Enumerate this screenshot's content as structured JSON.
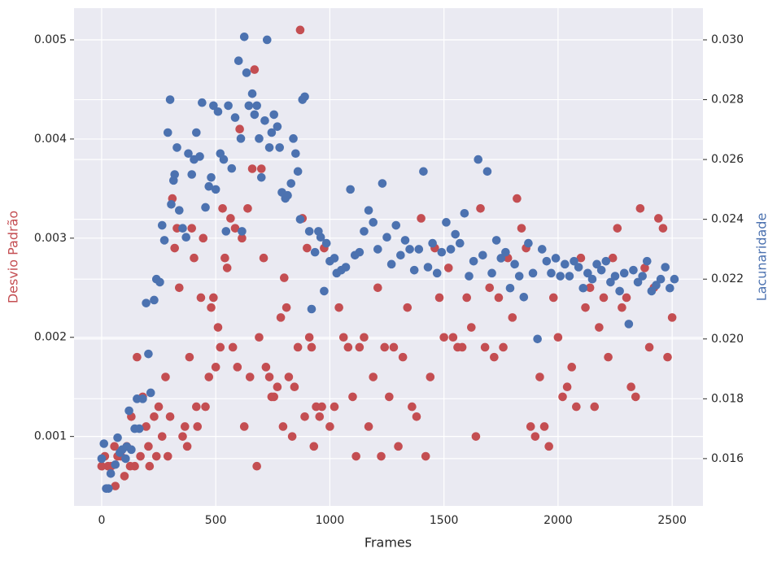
{
  "chart_data": {
    "type": "scatter",
    "xlabel": "Frames",
    "ylabel": "Desvio Padrão",
    "y2label": "Lacunaridade",
    "xlim": [
      -121,
      2635
    ],
    "xticks": [
      0,
      500,
      1000,
      1500,
      2000,
      2500
    ],
    "ylim": [
      0.0003,
      0.00532
    ],
    "yticks": [
      0.001,
      0.002,
      0.003,
      0.004,
      0.005
    ],
    "y2lim": [
      0.01442,
      0.03106
    ],
    "y2ticks": [
      0.016,
      0.018,
      {
        "value": 0.02,
        "label": "0.020"
      },
      0.022,
      0.024,
      0.026,
      0.028,
      {
        "value": 0.03,
        "label": "0.030"
      }
    ],
    "grid": true,
    "series": [
      {
        "color": "#c44e52",
        "axis": "y",
        "x": [
          0,
          14,
          28,
          42,
          56,
          60,
          70,
          85,
          100,
          110,
          125,
          130,
          145,
          155,
          170,
          180,
          195,
          205,
          210,
          230,
          240,
          250,
          265,
          280,
          290,
          300,
          310,
          320,
          330,
          340,
          355,
          365,
          375,
          385,
          395,
          405,
          415,
          420,
          435,
          445,
          455,
          470,
          480,
          490,
          500,
          510,
          520,
          530,
          540,
          550,
          565,
          575,
          585,
          595,
          605,
          615,
          625,
          640,
          650,
          660,
          670,
          680,
          690,
          700,
          710,
          720,
          735,
          745,
          755,
          770,
          785,
          795,
          800,
          810,
          820,
          835,
          845,
          860,
          870,
          880,
          890,
          900,
          910,
          920,
          930,
          940,
          955,
          965,
          975,
          1000,
          1020,
          1040,
          1060,
          1080,
          1100,
          1115,
          1130,
          1150,
          1170,
          1190,
          1210,
          1225,
          1240,
          1260,
          1280,
          1300,
          1320,
          1340,
          1360,
          1380,
          1400,
          1420,
          1440,
          1460,
          1480,
          1500,
          1520,
          1540,
          1560,
          1580,
          1600,
          1620,
          1640,
          1660,
          1680,
          1700,
          1720,
          1740,
          1760,
          1780,
          1800,
          1820,
          1840,
          1860,
          1880,
          1900,
          1920,
          1940,
          1960,
          1980,
          2000,
          2020,
          2040,
          2060,
          2080,
          2100,
          2120,
          2140,
          2160,
          2180,
          2200,
          2220,
          2240,
          2260,
          2280,
          2300,
          2320,
          2340,
          2360,
          2380,
          2400,
          2420,
          2440,
          2460,
          2480,
          2500
        ],
        "values": [
          0.0007,
          0.0008,
          0.0007,
          0.0007,
          0.0009,
          0.0005,
          0.0008,
          0.0008,
          0.0006,
          0.0009,
          0.0007,
          0.0012,
          0.0007,
          0.0018,
          0.0008,
          0.0014,
          0.0011,
          0.0009,
          0.0007,
          0.0012,
          0.0008,
          0.0013,
          0.001,
          0.0016,
          0.0008,
          0.0012,
          0.0034,
          0.0029,
          0.0031,
          0.0025,
          0.001,
          0.0011,
          0.0009,
          0.0018,
          0.0031,
          0.0028,
          0.0013,
          0.0011,
          0.0024,
          0.003,
          0.0013,
          0.0016,
          0.0023,
          0.0024,
          0.0017,
          0.0021,
          0.0019,
          0.0033,
          0.0028,
          0.0027,
          0.0032,
          0.0019,
          0.0031,
          0.0017,
          0.0041,
          0.003,
          0.0011,
          0.0033,
          0.0016,
          0.0037,
          0.0047,
          0.0007,
          0.002,
          0.0037,
          0.0028,
          0.0017,
          0.0016,
          0.0014,
          0.0014,
          0.0015,
          0.0022,
          0.0011,
          0.0026,
          0.0023,
          0.0016,
          0.001,
          0.0015,
          0.0019,
          0.0051,
          0.0032,
          0.0012,
          0.0029,
          0.002,
          0.0019,
          0.0009,
          0.0013,
          0.0012,
          0.0013,
          0.0029,
          0.0011,
          0.0013,
          0.0023,
          0.002,
          0.0019,
          0.0014,
          0.0008,
          0.0019,
          0.002,
          0.0011,
          0.0016,
          0.0025,
          0.0008,
          0.0019,
          0.0014,
          0.0019,
          0.0009,
          0.0018,
          0.0023,
          0.0013,
          0.0012,
          0.0032,
          0.0008,
          0.0016,
          0.0029,
          0.0024,
          0.002,
          0.0027,
          0.002,
          0.0019,
          0.0019,
          0.0024,
          0.0021,
          0.001,
          0.0033,
          0.0019,
          0.0025,
          0.0018,
          0.0024,
          0.0019,
          0.0028,
          0.0022,
          0.0034,
          0.0031,
          0.0029,
          0.0011,
          0.001,
          0.0016,
          0.0011,
          0.0009,
          0.0024,
          0.002,
          0.0014,
          0.0015,
          0.0017,
          0.0013,
          0.0028,
          0.0023,
          0.0025,
          0.0013,
          0.0021,
          0.0024,
          0.0018,
          0.0028,
          0.0031,
          0.0023,
          0.0024,
          0.0015,
          0.0014,
          0.0033,
          0.0027,
          0.0019,
          0.0025,
          0.0032,
          0.0031,
          0.0018,
          0.0022
        ]
      },
      {
        "color": "#4c72b0",
        "axis": "y2",
        "x": [
          0,
          10,
          20,
          30,
          40,
          60,
          70,
          80,
          90,
          105,
          110,
          120,
          130,
          145,
          155,
          165,
          180,
          195,
          205,
          215,
          230,
          240,
          255,
          265,
          275,
          290,
          300,
          305,
          315,
          320,
          330,
          340,
          355,
          370,
          380,
          395,
          405,
          415,
          430,
          440,
          455,
          470,
          480,
          490,
          500,
          510,
          520,
          535,
          545,
          555,
          570,
          585,
          600,
          610,
          615,
          625,
          635,
          645,
          660,
          670,
          680,
          690,
          700,
          715,
          725,
          735,
          745,
          755,
          770,
          780,
          790,
          805,
          815,
          830,
          840,
          850,
          860,
          870,
          880,
          890,
          910,
          920,
          935,
          950,
          960,
          975,
          985,
          1000,
          1020,
          1030,
          1050,
          1070,
          1090,
          1110,
          1130,
          1150,
          1170,
          1190,
          1210,
          1230,
          1250,
          1270,
          1290,
          1310,
          1330,
          1350,
          1370,
          1390,
          1410,
          1430,
          1450,
          1470,
          1490,
          1510,
          1530,
          1550,
          1570,
          1590,
          1610,
          1630,
          1650,
          1670,
          1690,
          1710,
          1730,
          1750,
          1770,
          1790,
          1810,
          1830,
          1850,
          1870,
          1890,
          1910,
          1930,
          1950,
          1970,
          1990,
          2010,
          2030,
          2050,
          2070,
          2090,
          2110,
          2130,
          2150,
          2170,
          2190,
          2210,
          2230,
          2250,
          2270,
          2290,
          2310,
          2330,
          2350,
          2370,
          2390,
          2410,
          2430,
          2450,
          2470,
          2490,
          2510
        ],
        "values": [
          0.016,
          0.0165,
          0.015,
          0.015,
          0.0155,
          0.0158,
          0.0167,
          0.0162,
          0.0163,
          0.016,
          0.0164,
          0.0176,
          0.0163,
          0.017,
          0.018,
          0.017,
          0.018,
          0.0212,
          0.0195,
          0.0182,
          0.0213,
          0.022,
          0.0219,
          0.0238,
          0.0233,
          0.0269,
          0.028,
          0.0245,
          0.0253,
          0.0255,
          0.0264,
          0.0243,
          0.0237,
          0.0234,
          0.0262,
          0.0255,
          0.026,
          0.0269,
          0.0261,
          0.0279,
          0.0244,
          0.0251,
          0.0254,
          0.0278,
          0.025,
          0.0276,
          0.0262,
          0.026,
          0.0236,
          0.0278,
          0.0257,
          0.0274,
          0.0293,
          0.0267,
          0.0236,
          0.0301,
          0.0289,
          0.0278,
          0.0282,
          0.0275,
          0.0278,
          0.0267,
          0.0254,
          0.0273,
          0.03,
          0.0264,
          0.0269,
          0.0275,
          0.0271,
          0.0264,
          0.0249,
          0.0247,
          0.0248,
          0.0252,
          0.0267,
          0.0262,
          0.0256,
          0.024,
          0.028,
          0.0281,
          0.0236,
          0.021,
          0.0229,
          0.0236,
          0.0234,
          0.0216,
          0.0232,
          0.0226,
          0.0227,
          0.0222,
          0.0223,
          0.0224,
          0.025,
          0.0228,
          0.0229,
          0.0236,
          0.0243,
          0.0239,
          0.023,
          0.0252,
          0.0234,
          0.0225,
          0.0238,
          0.0228,
          0.0233,
          0.023,
          0.0223,
          0.023,
          0.0256,
          0.0224,
          0.0232,
          0.0222,
          0.0229,
          0.0239,
          0.023,
          0.0235,
          0.0232,
          0.0242,
          0.0221,
          0.0226,
          0.026,
          0.0228,
          0.0256,
          0.0222,
          0.0233,
          0.0227,
          0.0229,
          0.0217,
          0.0225,
          0.0221,
          0.0214,
          0.0232,
          0.0222,
          0.02,
          0.023,
          0.0226,
          0.0222,
          0.0227,
          0.0221,
          0.0225,
          0.0221,
          0.0226,
          0.0224,
          0.0217,
          0.0222,
          0.022,
          0.0225,
          0.0223,
          0.0226,
          0.0219,
          0.0221,
          0.0216,
          0.0222,
          0.0205,
          0.0223,
          0.0219,
          0.0221,
          0.0226,
          0.0216,
          0.0218,
          0.022,
          0.0224,
          0.0217,
          0.022
        ]
      }
    ]
  }
}
